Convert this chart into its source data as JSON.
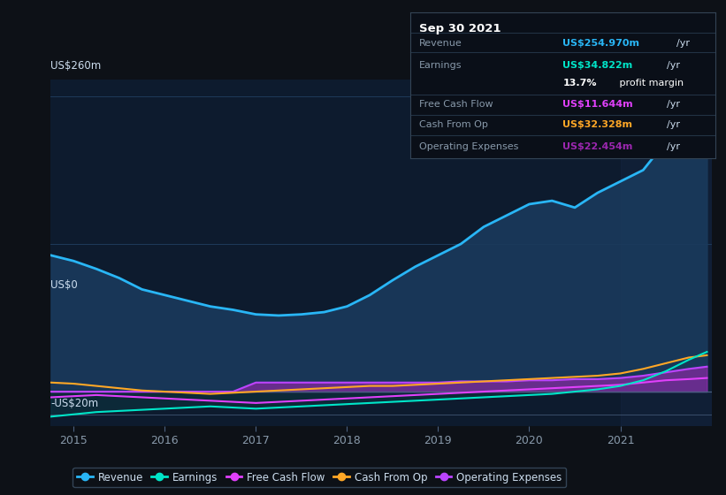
{
  "background_color": "#0d1117",
  "plot_bg_color": "#0d1b2e",
  "ylabel_top": "US$260m",
  "ylabel_zero": "US$0",
  "ylabel_neg": "-US$20m",
  "xlim": [
    2014.75,
    2022.0
  ],
  "ylim": [
    -30,
    275
  ],
  "revenue_color": "#29b6f6",
  "revenue_fill": "#1a3a5c",
  "earnings_color": "#00e5c8",
  "freecashflow_color": "#e040fb",
  "cashfromop_color": "#ffa726",
  "opexpenses_color": "#9c27b0",
  "opexpenses_line_color": "#bb44ff",
  "info_box": {
    "title": "Sep 30 2021",
    "rows": [
      {
        "label": "Revenue",
        "value": "US$254.970m",
        "unit": "/yr",
        "color": "#29b6f6"
      },
      {
        "label": "Earnings",
        "value": "US$34.822m",
        "unit": "/yr",
        "color": "#00e5c8"
      },
      {
        "label": "",
        "value": "13.7%",
        "unit": " profit margin",
        "color": "#ffffff"
      },
      {
        "label": "Free Cash Flow",
        "value": "US$11.644m",
        "unit": "/yr",
        "color": "#e040fb"
      },
      {
        "label": "Cash From Op",
        "value": "US$32.328m",
        "unit": "/yr",
        "color": "#ffa726"
      },
      {
        "label": "Operating Expenses",
        "value": "US$22.454m",
        "unit": "/yr",
        "color": "#9c27b0"
      }
    ]
  },
  "revenue": {
    "x": [
      2014.75,
      2015.0,
      2015.25,
      2015.5,
      2015.75,
      2016.0,
      2016.25,
      2016.5,
      2016.75,
      2017.0,
      2017.25,
      2017.5,
      2017.75,
      2018.0,
      2018.25,
      2018.5,
      2018.75,
      2019.0,
      2019.25,
      2019.5,
      2019.75,
      2020.0,
      2020.25,
      2020.5,
      2020.75,
      2021.0,
      2021.25,
      2021.5,
      2021.75,
      2021.95
    ],
    "y": [
      120,
      115,
      108,
      100,
      90,
      85,
      80,
      75,
      72,
      68,
      67,
      68,
      70,
      75,
      85,
      98,
      110,
      120,
      130,
      145,
      155,
      165,
      168,
      162,
      175,
      185,
      195,
      220,
      250,
      255
    ]
  },
  "earnings": {
    "x": [
      2014.75,
      2015.0,
      2015.25,
      2015.5,
      2015.75,
      2016.0,
      2016.25,
      2016.5,
      2016.75,
      2017.0,
      2017.25,
      2017.5,
      2017.75,
      2018.0,
      2018.25,
      2018.5,
      2018.75,
      2019.0,
      2019.25,
      2019.5,
      2019.75,
      2020.0,
      2020.25,
      2020.5,
      2020.75,
      2021.0,
      2021.25,
      2021.5,
      2021.75,
      2021.95
    ],
    "y": [
      -22,
      -20,
      -18,
      -17,
      -16,
      -15,
      -14,
      -13,
      -14,
      -15,
      -14,
      -13,
      -12,
      -11,
      -10,
      -9,
      -8,
      -7,
      -6,
      -5,
      -4,
      -3,
      -2,
      0,
      2,
      5,
      10,
      18,
      28,
      35
    ]
  },
  "freecashflow": {
    "x": [
      2014.75,
      2015.0,
      2015.25,
      2015.5,
      2015.75,
      2016.0,
      2016.25,
      2016.5,
      2016.75,
      2017.0,
      2017.25,
      2017.5,
      2017.75,
      2018.0,
      2018.25,
      2018.5,
      2018.75,
      2019.0,
      2019.25,
      2019.5,
      2019.75,
      2020.0,
      2020.25,
      2020.5,
      2020.75,
      2021.0,
      2021.25,
      2021.5,
      2021.75,
      2021.95
    ],
    "y": [
      -5,
      -4,
      -3,
      -4,
      -5,
      -6,
      -7,
      -8,
      -9,
      -10,
      -9,
      -8,
      -7,
      -6,
      -5,
      -4,
      -3,
      -2,
      -1,
      0,
      1,
      2,
      3,
      4,
      5,
      6,
      8,
      10,
      11,
      12
    ]
  },
  "cashfromop": {
    "x": [
      2014.75,
      2015.0,
      2015.25,
      2015.5,
      2015.75,
      2016.0,
      2016.25,
      2016.5,
      2016.75,
      2017.0,
      2017.25,
      2017.5,
      2017.75,
      2018.0,
      2018.25,
      2018.5,
      2018.75,
      2019.0,
      2019.25,
      2019.5,
      2019.75,
      2020.0,
      2020.25,
      2020.5,
      2020.75,
      2021.0,
      2021.25,
      2021.5,
      2021.75,
      2021.95
    ],
    "y": [
      8,
      7,
      5,
      3,
      1,
      0,
      -1,
      -2,
      -1,
      0,
      1,
      2,
      3,
      4,
      5,
      5,
      6,
      7,
      8,
      9,
      10,
      11,
      12,
      13,
      14,
      16,
      20,
      25,
      30,
      32
    ]
  },
  "opexpenses": {
    "x": [
      2014.75,
      2015.0,
      2015.25,
      2015.5,
      2015.75,
      2016.0,
      2016.25,
      2016.5,
      2016.75,
      2017.0,
      2017.25,
      2017.5,
      2017.75,
      2018.0,
      2018.25,
      2018.5,
      2018.75,
      2019.0,
      2019.25,
      2019.5,
      2019.75,
      2020.0,
      2020.25,
      2020.5,
      2020.75,
      2021.0,
      2021.25,
      2021.5,
      2021.75,
      2021.95
    ],
    "y": [
      0,
      0,
      0,
      0,
      0,
      0,
      0,
      0,
      0,
      8,
      8,
      8,
      8,
      8,
      8,
      8,
      8,
      8,
      9,
      9,
      9,
      10,
      10,
      11,
      11,
      12,
      14,
      17,
      20,
      22
    ]
  },
  "grid_color": "#1e3a5a",
  "axis_color": "#4a6080",
  "text_color": "#8899aa",
  "label_color": "#ccddee",
  "highlight_x": 2021.0
}
